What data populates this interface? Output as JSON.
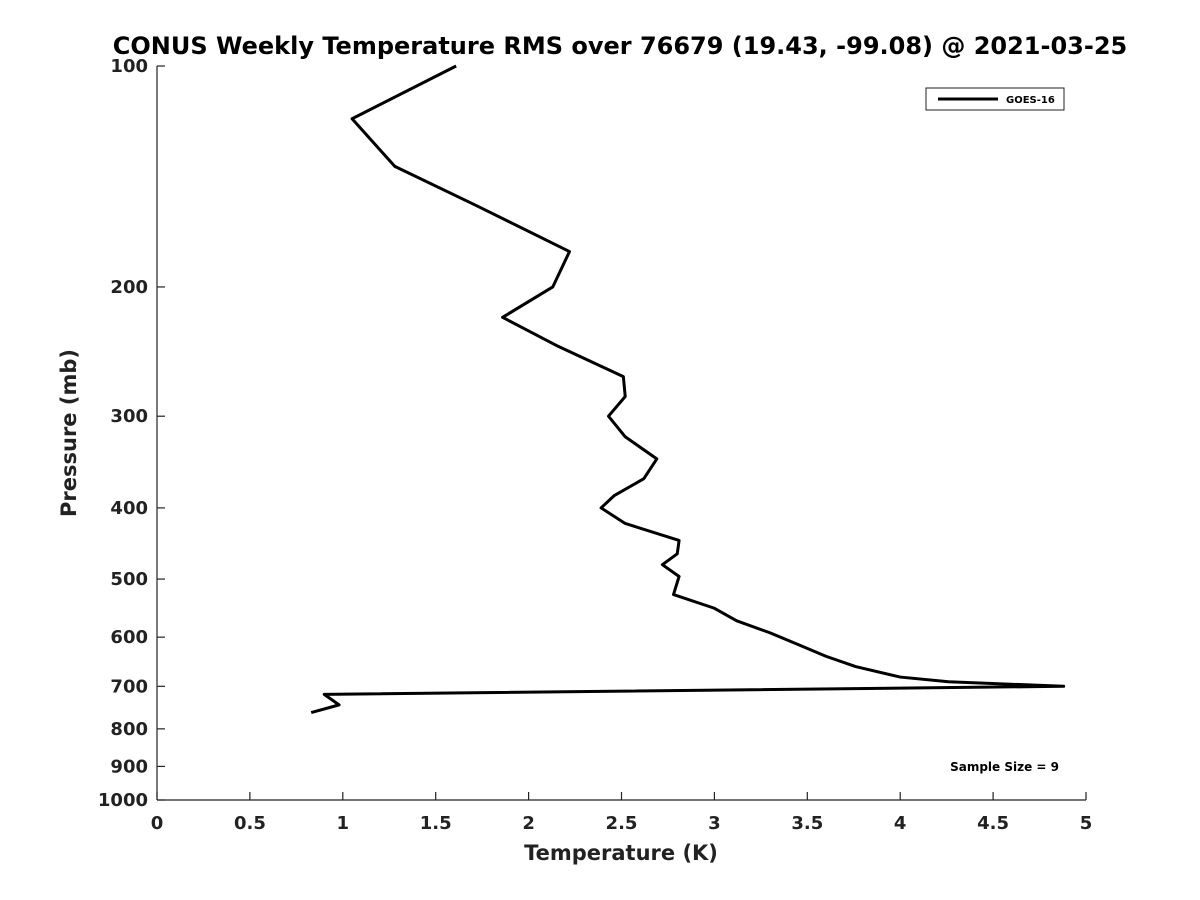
{
  "chart_data": {
    "type": "line",
    "title": "CONUS Weekly Temperature RMS over 76679 (19.43, -99.08) @ 2021-03-25",
    "xlabel": "Temperature (K)",
    "ylabel": "Pressure (mb)",
    "xlim": [
      0,
      5
    ],
    "ylim": [
      1000,
      100
    ],
    "y_scale": "log",
    "y_inverted": true,
    "grid": false,
    "x_ticks": [
      0,
      0.5,
      1,
      1.5,
      2,
      2.5,
      3,
      3.5,
      4,
      4.5,
      5
    ],
    "x_tick_labels": [
      "0",
      "0.5",
      "1",
      "1.5",
      "2",
      "2.5",
      "3",
      "3.5",
      "4",
      "4.5",
      "5"
    ],
    "y_ticks": [
      100,
      200,
      300,
      400,
      500,
      600,
      700,
      800,
      900,
      1000
    ],
    "y_tick_labels": [
      "100",
      "200",
      "300",
      "400",
      "500",
      "600",
      "700",
      "800",
      "900",
      "1000"
    ],
    "legend": {
      "placement": "top-right",
      "entries": [
        "GOES-16"
      ]
    },
    "annotation": "Sample Size = 9",
    "series": [
      {
        "name": "GOES-16",
        "color": "#000000",
        "points": [
          [
            1.61,
            100
          ],
          [
            1.05,
            118
          ],
          [
            1.28,
            137
          ],
          [
            1.72,
            155
          ],
          [
            2.22,
            179
          ],
          [
            2.13,
            200
          ],
          [
            1.86,
            220
          ],
          [
            2.16,
            241
          ],
          [
            2.51,
            265
          ],
          [
            2.52,
            282
          ],
          [
            2.43,
            300
          ],
          [
            2.52,
            320
          ],
          [
            2.69,
            343
          ],
          [
            2.62,
            365
          ],
          [
            2.46,
            385
          ],
          [
            2.39,
            400
          ],
          [
            2.52,
            420
          ],
          [
            2.81,
            443
          ],
          [
            2.8,
            462
          ],
          [
            2.72,
            478
          ],
          [
            2.81,
            496
          ],
          [
            2.79,
            515
          ],
          [
            2.78,
            525
          ],
          [
            3.0,
            548
          ],
          [
            3.12,
            570
          ],
          [
            3.3,
            592
          ],
          [
            3.45,
            614
          ],
          [
            3.6,
            637
          ],
          [
            3.76,
            658
          ],
          [
            4.0,
            680
          ],
          [
            4.26,
            690
          ],
          [
            4.88,
            700
          ],
          [
            0.9,
            718
          ],
          [
            0.98,
            742
          ],
          [
            0.83,
            760
          ]
        ]
      }
    ]
  }
}
